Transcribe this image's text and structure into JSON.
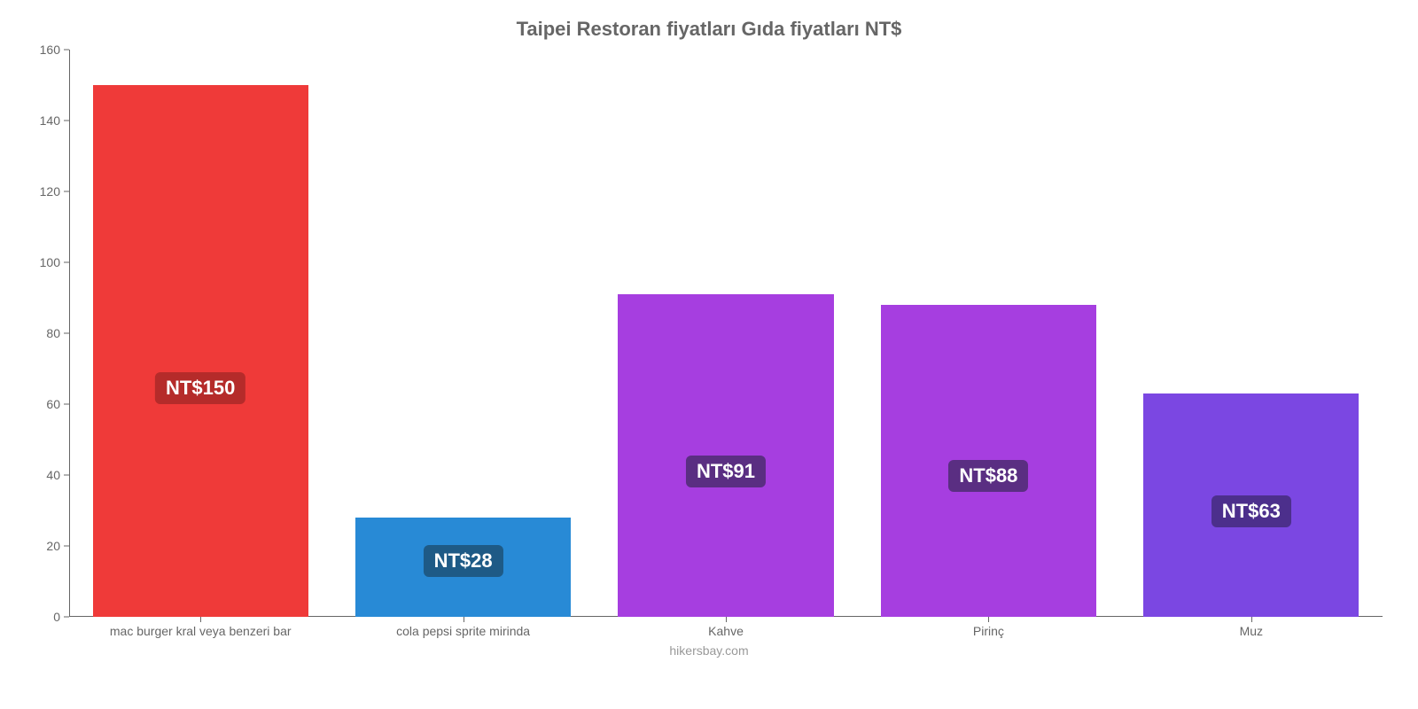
{
  "chart": {
    "type": "bar",
    "title": "Taipei Restoran fiyatları Gıda fiyatları NT$",
    "title_fontsize": 22,
    "title_color": "#666666",
    "background_color": "#ffffff",
    "axis_color": "#666666",
    "label_color": "#666666",
    "label_fontsize": 14,
    "footer": "hikersbay.com",
    "footer_color": "#999999",
    "ylim": [
      0,
      160
    ],
    "ytick_step": 20,
    "yticks": [
      0,
      20,
      40,
      60,
      80,
      100,
      120,
      140,
      160
    ],
    "bar_width_pct": 82,
    "value_label_fontsize": 22,
    "value_label_text_color": "#ffffff",
    "categories": [
      "mac burger kral veya benzeri bar",
      "cola pepsi sprite mirinda",
      "Kahve",
      "Pirinç",
      "Muz"
    ],
    "values": [
      150,
      28,
      91,
      88,
      63
    ],
    "value_labels": [
      "NT$150",
      "NT$28",
      "NT$91",
      "NT$88",
      "NT$63"
    ],
    "bar_colors": [
      "#ef3a39",
      "#288ad6",
      "#a63ee0",
      "#a63ee0",
      "#7b47e2"
    ],
    "badge_colors": [
      "#b52b2a",
      "#1e5a86",
      "#5a2e82",
      "#5a2e82",
      "#4c2f8c"
    ]
  }
}
